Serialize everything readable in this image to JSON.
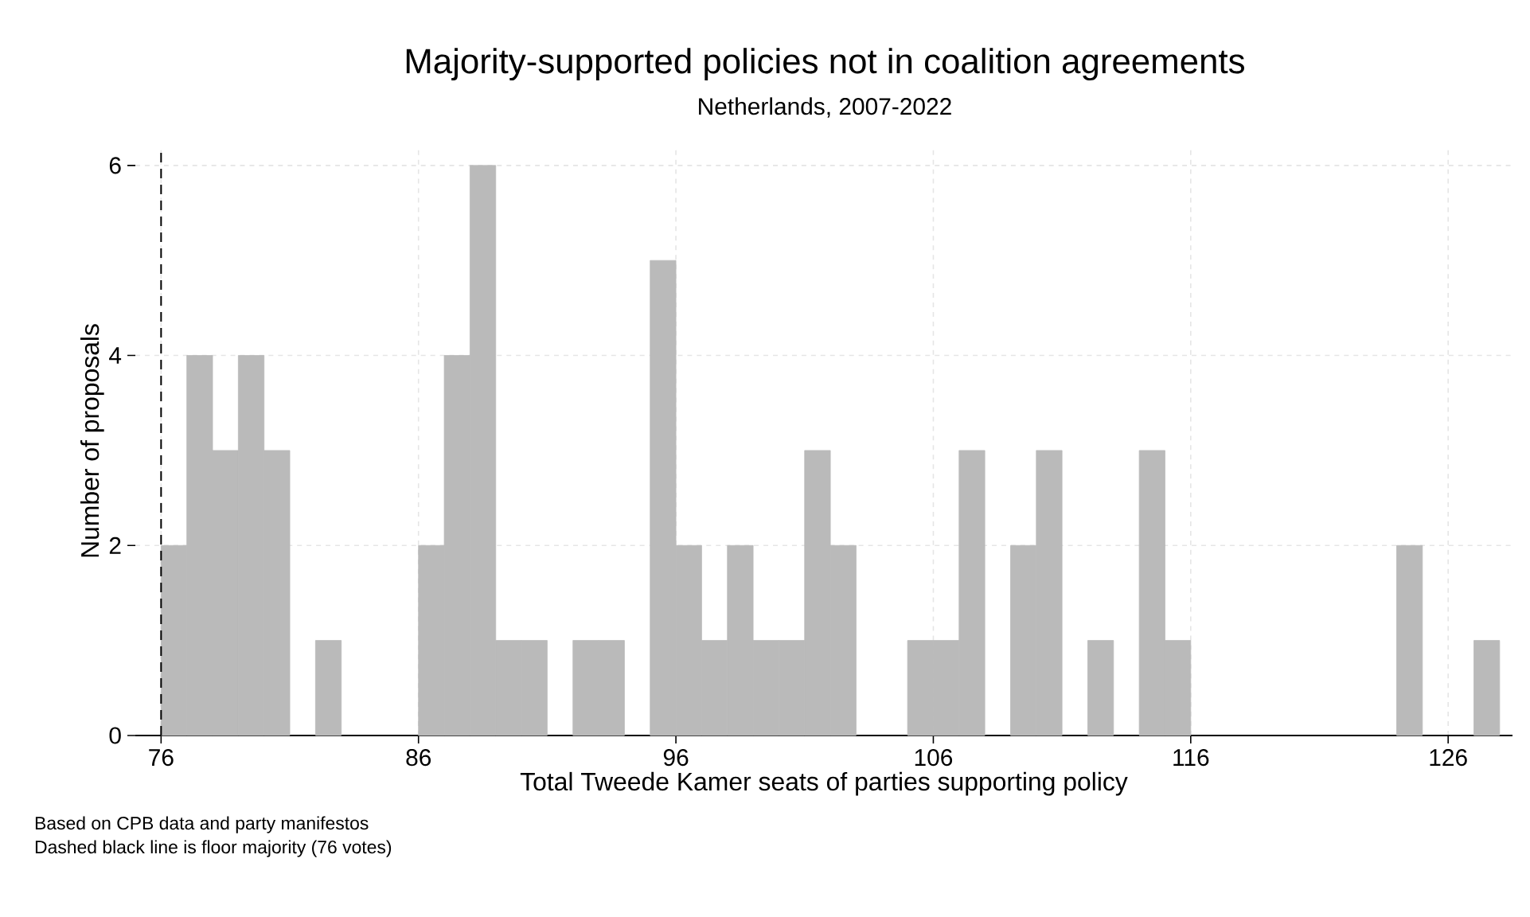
{
  "chart_data": {
    "type": "histogram",
    "title": "Majority-supported policies not in coalition agreements",
    "subtitle": "Netherlands, 2007-2022",
    "xlabel": "Total Tweede Kamer seats of parties supporting policy",
    "ylabel": "Number of proposals",
    "bins": [
      76,
      77,
      78,
      79,
      80,
      81,
      82,
      83,
      84,
      85,
      86,
      87,
      88,
      89,
      90,
      91,
      92,
      93,
      94,
      95,
      96,
      97,
      98,
      99,
      100,
      101,
      102,
      103,
      104,
      105,
      106,
      107,
      108,
      109,
      110,
      111,
      112,
      113,
      114,
      115,
      116,
      117,
      118,
      119,
      120,
      121,
      122,
      123,
      124,
      125,
      126,
      127,
      128
    ],
    "values": [
      2,
      4,
      3,
      4,
      3,
      0,
      1,
      0,
      0,
      0,
      2,
      4,
      6,
      1,
      1,
      0,
      1,
      1,
      0,
      5,
      2,
      1,
      2,
      1,
      1,
      3,
      2,
      0,
      0,
      1,
      1,
      3,
      0,
      2,
      3,
      0,
      1,
      0,
      3,
      1,
      0,
      0,
      0,
      0,
      0,
      0,
      0,
      0,
      2,
      0,
      0,
      1
    ],
    "color": "#bababa",
    "xlim": [
      75,
      128.5
    ],
    "ylim": [
      0,
      6.2
    ],
    "xticks": [
      76,
      86,
      96,
      106,
      116,
      126
    ],
    "yticks": [
      0,
      2,
      4,
      6
    ],
    "grid": true,
    "ref_lines": [
      {
        "axis": "x",
        "value": 76,
        "color": "#000000",
        "line_style": "dashed"
      }
    ],
    "annotations": [
      "Based on CPB data and party manifestos",
      "Dashed black line is floor majority (76 votes)"
    ]
  }
}
